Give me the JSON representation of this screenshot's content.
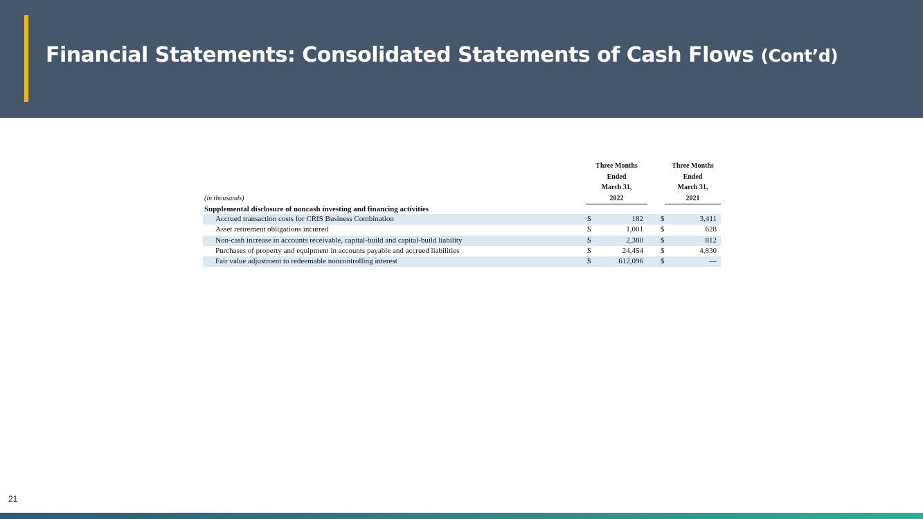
{
  "header": {
    "title": "Financial Statements: Consolidated Statements of Cash Flows",
    "title_suffix": "(Cont’d)"
  },
  "table": {
    "unit_note": "(in thousands)",
    "columns": [
      [
        "Three Months",
        "Ended",
        "March 31,",
        "2022"
      ],
      [
        "Three Months",
        "Ended",
        "March 31,",
        "2021"
      ]
    ],
    "section": "Supplemental disclosure of noncash investing and financing activities",
    "rows": [
      [
        "Accrued transaction costs for CRIS Business Combination",
        "$",
        "182",
        "$",
        "3,411"
      ],
      [
        "Asset retirement obligations incurred",
        "$",
        "1,001",
        "$",
        "628"
      ],
      [
        "Non-cash increase in accounts receivable, capital-build and capital-build liability",
        "$",
        "2,380",
        "$",
        "812"
      ],
      [
        "Purchases of property and equipment in accounts payable and accrued liabilities",
        "$",
        "24,454",
        "$",
        "4,830"
      ],
      [
        "Fair value adjustment to redeemable noncontrolling interest",
        "$",
        "612,096",
        "$",
        "—"
      ]
    ]
  },
  "footer": {
    "page_number": "21"
  }
}
